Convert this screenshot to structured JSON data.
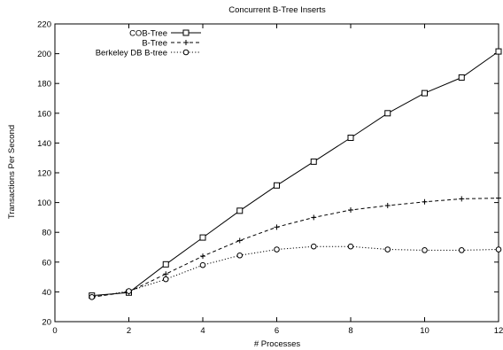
{
  "chart_data": {
    "type": "line",
    "title": "Concurrent B-Tree Inserts",
    "xlabel": "# Processes",
    "ylabel": "Transactions Per Second",
    "xlim": [
      0,
      12
    ],
    "ylim": [
      20,
      220
    ],
    "xticks": [
      0,
      2,
      4,
      6,
      8,
      10,
      12
    ],
    "yticks": [
      20,
      40,
      60,
      80,
      100,
      120,
      140,
      160,
      180,
      200,
      220
    ],
    "grid": false,
    "legend_position": "top-left",
    "series": [
      {
        "name": "COB-Tree",
        "line_style": "solid",
        "marker": "square",
        "x": [
          1,
          2,
          3,
          4,
          5,
          6,
          7,
          8,
          9,
          10,
          11,
          12
        ],
        "y": [
          37.5,
          39.5,
          58.5,
          76.5,
          94.5,
          111.5,
          127.5,
          143.5,
          160,
          173.5,
          184,
          201.5
        ]
      },
      {
        "name": "B-Tree",
        "line_style": "dashed",
        "marker": "plus",
        "x": [
          1,
          2,
          3,
          4,
          5,
          6,
          7,
          8,
          9,
          10,
          11,
          12
        ],
        "y": [
          36.5,
          40,
          52,
          64,
          74.5,
          83.5,
          90,
          95,
          98,
          100.5,
          102.5,
          103
        ]
      },
      {
        "name": "Berkeley DB B-tree",
        "line_style": "dotted",
        "marker": "circle",
        "x": [
          1,
          2,
          3,
          4,
          5,
          6,
          7,
          8,
          9,
          10,
          11,
          12
        ],
        "y": [
          36.5,
          40.5,
          48.5,
          58,
          64.5,
          68.5,
          70.5,
          70.5,
          68.5,
          68,
          68,
          68.5
        ]
      }
    ]
  }
}
